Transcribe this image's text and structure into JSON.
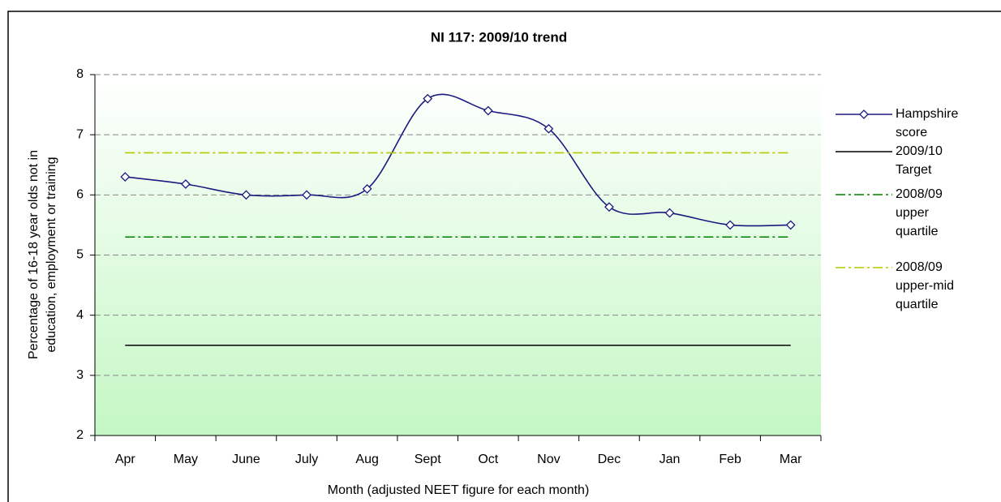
{
  "chart_data": {
    "type": "line",
    "title": "NI 117: 2009/10 trend",
    "xlabel": "Month (adjusted NEET figure for each month)",
    "ylabel": [
      "Percentage of 16-18 year olds not in",
      "education, employment or training"
    ],
    "categories": [
      "Apr",
      "May",
      "June",
      "July",
      "Aug",
      "Sept",
      "Oct",
      "Nov",
      "Dec",
      "Jan",
      "Feb",
      "Mar"
    ],
    "series": [
      {
        "name": "Hampshire score",
        "color": "#1a1a80",
        "style": "smooth-marker",
        "values": [
          6.3,
          6.18,
          6.0,
          6.0,
          6.1,
          7.6,
          7.4,
          7.1,
          5.8,
          5.7,
          5.5,
          5.5
        ]
      },
      {
        "name": "2009/10 Target",
        "color": "#000000",
        "style": "solid",
        "values": [
          3.5,
          3.5,
          3.5,
          3.5,
          3.5,
          3.5,
          3.5,
          3.5,
          3.5,
          3.5,
          3.5,
          3.5
        ]
      },
      {
        "name": "2008/09 upper quartile",
        "color": "#008000",
        "style": "dashdot",
        "values": [
          5.3,
          5.3,
          5.3,
          5.3,
          5.3,
          5.3,
          5.3,
          5.3,
          5.3,
          5.3,
          5.3,
          5.3
        ]
      },
      {
        "name": "2008/09 upper-mid quartile",
        "color": "#b4c800",
        "style": "dashdot",
        "values": [
          6.7,
          6.7,
          6.7,
          6.7,
          6.7,
          6.7,
          6.7,
          6.7,
          6.7,
          6.7,
          6.7,
          6.7
        ]
      }
    ],
    "ylim": [
      2,
      8
    ],
    "yticks": [
      2,
      3,
      4,
      5,
      6,
      7,
      8
    ],
    "grid": true,
    "legend": "right"
  }
}
